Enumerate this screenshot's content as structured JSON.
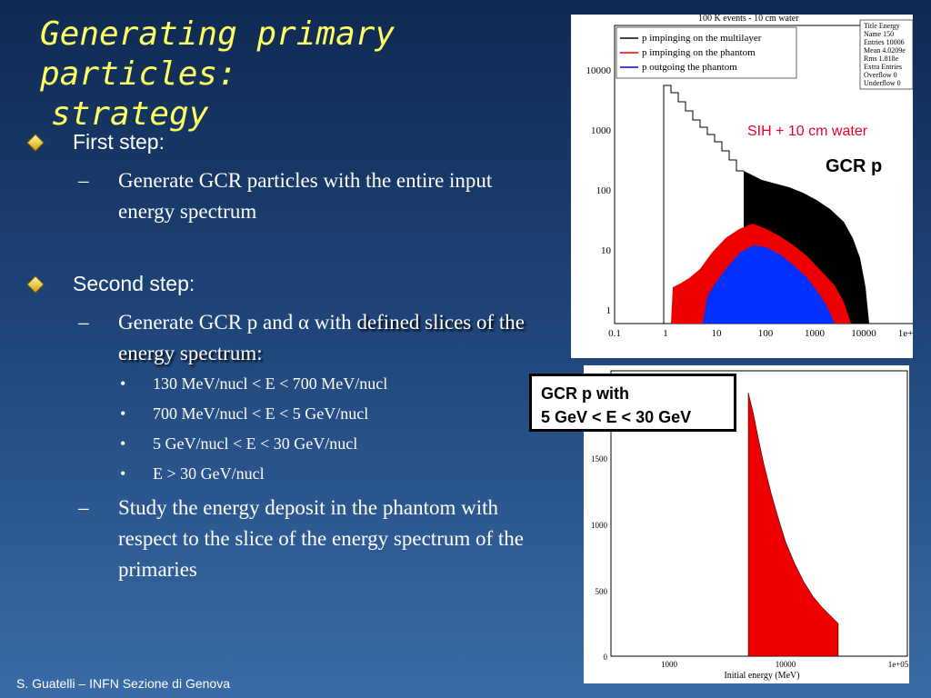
{
  "slide": {
    "title_line1": "Generating primary particles:",
    "title_line2": "strategy",
    "footer": "S. Guatelli – INFN Sezione di Genova"
  },
  "bullets": {
    "first_step": "First step:",
    "first_sub": "Generate GCR particles with the entire input energy spectrum",
    "second_step": "Second step:",
    "second_sub_a": "Generate GCR p and α with ",
    "second_sub_b": "defined slices of the energy spectrum:",
    "slices": [
      "130 MeV/nucl < E < 700 MeV/nucl",
      "700 MeV/nucl < E < 5 GeV/nucl",
      "5 GeV/nucl  < E < 30 GeV/nucl",
      "E > 30 GeV/nucl"
    ],
    "study": "Study the energy deposit in the phantom with respect to the slice of the energy spectrum of the primaries"
  },
  "plot1": {
    "top_title": "100 K events - 10 cm water",
    "legend": [
      {
        "text": "p impinging on the multilayer",
        "color": "#000000"
      },
      {
        "text": "p impinging on the phantom",
        "color": "#000000"
      },
      {
        "text": "p outgoing the phantom",
        "color": "#0000ff"
      }
    ],
    "stats": [
      "Title Energy",
      "Name 150",
      "Entries 10006",
      "Mean 4.0209e",
      "Rms 1.818e",
      "Extra Entries",
      "Overflow 0",
      "Underflow 0"
    ],
    "y_ticks": [
      "10000",
      "1000",
      "100",
      "10",
      "1"
    ],
    "x_ticks": [
      "0.1",
      "1",
      "10",
      "100",
      "1000",
      "10000",
      "1e+"
    ],
    "annotation_sih": "SIH + 10 cm water",
    "annotation_gcr": "GCR p"
  },
  "plot2": {
    "box_line1": "GCR p with",
    "box_line2": "5 GeV < E < 30 GeV",
    "y_ticks": [
      "1500",
      "1000",
      "500",
      "0"
    ],
    "x_ticks": [
      "1000",
      "10000",
      "1e+05"
    ],
    "xlabel": "Initial energy (MeV)"
  }
}
